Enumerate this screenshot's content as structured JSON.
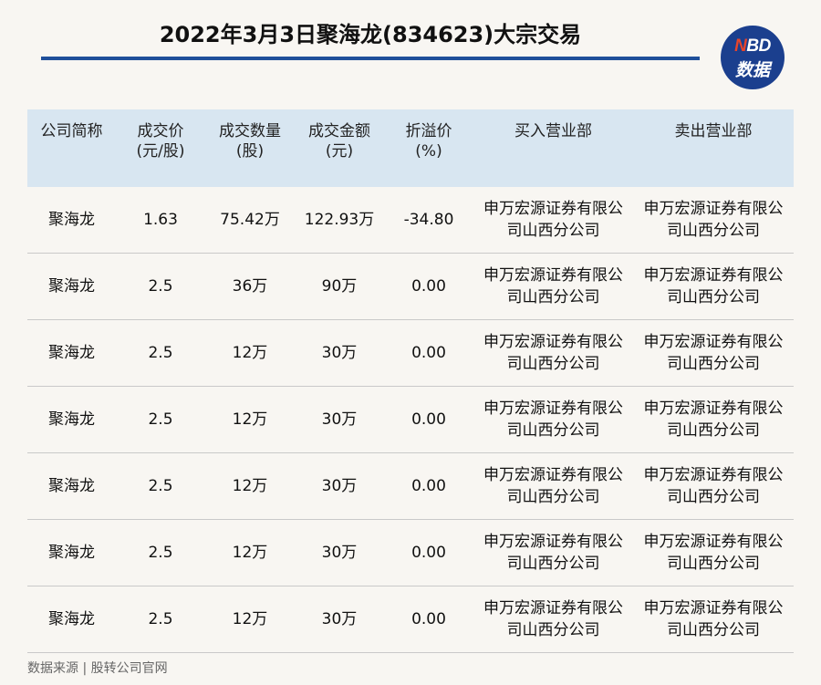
{
  "title": "2022年3月3日聚海龙(834623)大宗交易",
  "logo": {
    "line1_n": "N",
    "line1_rest": "BD",
    "line2": "数据"
  },
  "headers": [
    [
      "公司简称"
    ],
    [
      "成交价",
      "(元/股)"
    ],
    [
      "成交数量",
      "(股)"
    ],
    [
      "成交金额",
      "(元)"
    ],
    [
      "折溢价",
      "(%)"
    ],
    [
      "买入营业部"
    ],
    [
      "卖出营业部"
    ]
  ],
  "rows": [
    {
      "name": "聚海龙",
      "price": "1.63",
      "volume": "75.42万",
      "amount": "122.93万",
      "premium": "-34.80",
      "buyer": [
        "申万宏源证券有限公",
        "司山西分公司"
      ],
      "seller": [
        "申万宏源证券有限公",
        "司山西分公司"
      ]
    },
    {
      "name": "聚海龙",
      "price": "2.5",
      "volume": "36万",
      "amount": "90万",
      "premium": "0.00",
      "buyer": [
        "申万宏源证券有限公",
        "司山西分公司"
      ],
      "seller": [
        "申万宏源证券有限公",
        "司山西分公司"
      ]
    },
    {
      "name": "聚海龙",
      "price": "2.5",
      "volume": "12万",
      "amount": "30万",
      "premium": "0.00",
      "buyer": [
        "申万宏源证券有限公",
        "司山西分公司"
      ],
      "seller": [
        "申万宏源证券有限公",
        "司山西分公司"
      ]
    },
    {
      "name": "聚海龙",
      "price": "2.5",
      "volume": "12万",
      "amount": "30万",
      "premium": "0.00",
      "buyer": [
        "申万宏源证券有限公",
        "司山西分公司"
      ],
      "seller": [
        "申万宏源证券有限公",
        "司山西分公司"
      ]
    },
    {
      "name": "聚海龙",
      "price": "2.5",
      "volume": "12万",
      "amount": "30万",
      "premium": "0.00",
      "buyer": [
        "申万宏源证券有限公",
        "司山西分公司"
      ],
      "seller": [
        "申万宏源证券有限公",
        "司山西分公司"
      ]
    },
    {
      "name": "聚海龙",
      "price": "2.5",
      "volume": "12万",
      "amount": "30万",
      "premium": "0.00",
      "buyer": [
        "申万宏源证券有限公",
        "司山西分公司"
      ],
      "seller": [
        "申万宏源证券有限公",
        "司山西分公司"
      ]
    },
    {
      "name": "聚海龙",
      "price": "2.5",
      "volume": "12万",
      "amount": "30万",
      "premium": "0.00",
      "buyer": [
        "申万宏源证券有限公",
        "司山西分公司"
      ],
      "seller": [
        "申万宏源证券有限公",
        "司山西分公司"
      ]
    }
  ],
  "source": "数据来源 | 股转公司官网",
  "colors": {
    "accent": "#1f4f9a",
    "header_bg": "#d8e6f1",
    "logo_bg": "#1b3f8e",
    "logo_n": "#e8442a",
    "page_bg": "#f8f6f2"
  }
}
